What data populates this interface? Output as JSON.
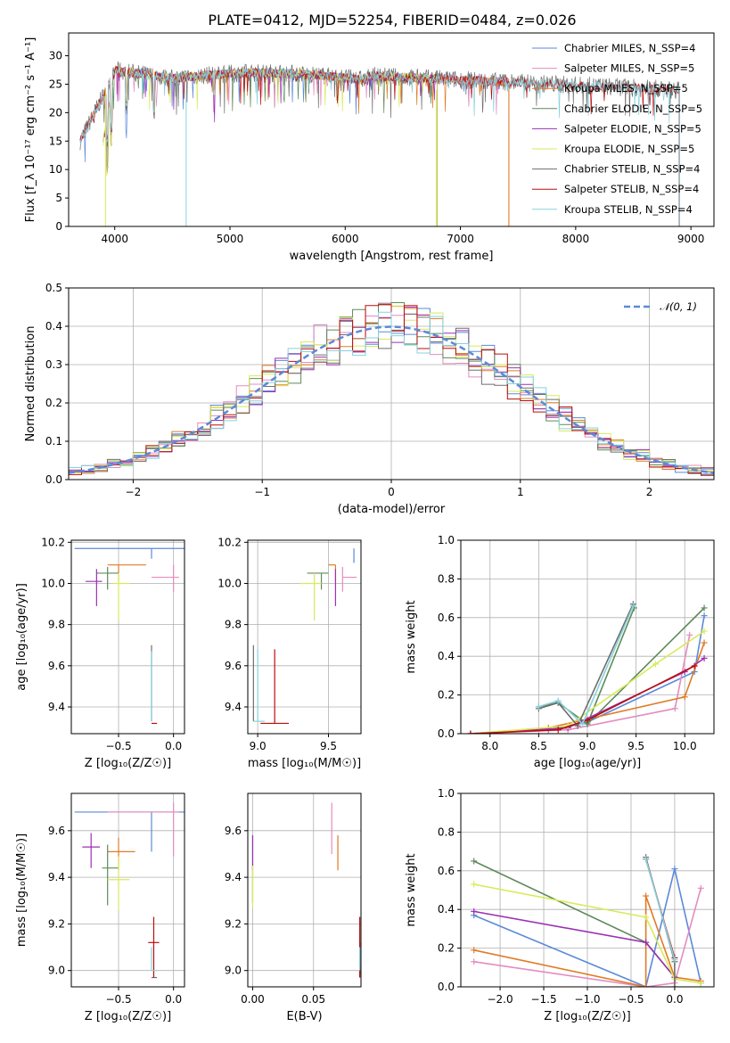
{
  "title": "PLATE=0412, MJD=52254, FIBERID=0484, z=0.026",
  "model_colors": [
    "#5b8ad8",
    "#e48cc0",
    "#e07b26",
    "#5f8a5a",
    "#9b30b4",
    "#d8ea5a",
    "#6e6e6e",
    "#bb0d0d",
    "#86d2de"
  ],
  "chart_data": [
    {
      "type": "line",
      "xlabel": "wavelength [Angstrom, rest frame]",
      "ylabel": "Flux [f_λ 10⁻¹⁷ erg cm⁻² s⁻¹ A⁻¹]",
      "xlim": [
        3600,
        9200
      ],
      "ylim": [
        0,
        34
      ],
      "xticks": [
        "4000",
        "5000",
        "6000",
        "7000",
        "8000",
        "9000"
      ],
      "yticks": [
        "0",
        "5",
        "10",
        "15",
        "20",
        "25",
        "30"
      ],
      "grid": false,
      "legend": "top-right",
      "series": [
        {
          "name": "Chabrier MILES, N_SSP=4",
          "x": [
            3700,
            4000,
            7420
          ],
          "y": [
            15,
            27,
            26
          ]
        },
        {
          "name": "Salpeter MILES, N_SSP=5",
          "x": [
            3700,
            4000,
            7420
          ],
          "y": [
            15,
            27,
            26
          ]
        },
        {
          "name": "Kroupa MILES, N_SSP=5",
          "x": [
            3700,
            4000,
            7420
          ],
          "y": [
            15,
            27,
            26
          ]
        },
        {
          "name": "Chabrier ELODIE, N_SSP=5",
          "x": [
            3900,
            4000,
            6800
          ],
          "y": [
            15,
            27,
            26
          ]
        },
        {
          "name": "Salpeter ELODIE, N_SSP=5",
          "x": [
            3900,
            4000,
            6800
          ],
          "y": [
            15,
            27,
            26
          ]
        },
        {
          "name": "Kroupa ELODIE, N_SSP=5",
          "x": [
            3900,
            4000,
            6800
          ],
          "y": [
            15,
            27,
            26
          ]
        },
        {
          "name": "Chabrier STELIB, N_SSP=4",
          "x": [
            3700,
            4000,
            8900
          ],
          "y": [
            15,
            27,
            26
          ]
        },
        {
          "name": "Salpeter STELIB, N_SSP=4",
          "x": [
            3700,
            4000,
            8900
          ],
          "y": [
            15,
            27,
            26
          ]
        },
        {
          "name": "Kroupa STELIB, N_SSP=4",
          "x": [
            3700,
            4000,
            8900
          ],
          "y": [
            15,
            27,
            26
          ]
        }
      ],
      "note_drop_x": [
        3920,
        4620,
        6790,
        7420
      ]
    },
    {
      "type": "line",
      "xlabel": "(data-model)/error",
      "ylabel": "Normed distribution",
      "xlim": [
        -2.5,
        2.5
      ],
      "ylim": [
        0,
        0.5
      ],
      "xticks": [
        "−2",
        "−1",
        "0",
        "1",
        "2"
      ],
      "yticks": [
        "0.0",
        "0.1",
        "0.2",
        "0.3",
        "0.4",
        "0.5"
      ],
      "grid": true,
      "legend": "top-right",
      "legend_label": "𝒩(0, 1)",
      "bin_width": 0.1,
      "x_start": -2.5,
      "normal_curve": {
        "mu": 0,
        "sigma": 1
      }
    },
    {
      "type": "scatter",
      "xlabel": "Z [log₁₀(Z/Z☉)]",
      "ylabel": "age  [log₁₀(age/yr)]",
      "xlim": [
        -0.93,
        0.1
      ],
      "ylim": [
        9.27,
        10.21
      ],
      "xticks": [
        "−0.5",
        "0.0"
      ],
      "yticks": [
        "9.4",
        "9.6",
        "9.8",
        "10.0",
        "10.2"
      ],
      "grid": true,
      "points": [
        {
          "x": -0.2,
          "y": 10.17,
          "x_err": [
            0.7,
            0.3
          ],
          "y_err": [
            0.05,
            0.0
          ]
        },
        {
          "x": 0.0,
          "y": 10.03,
          "x_err": [
            0.2,
            0.05
          ],
          "y_err": [
            0.07,
            0.06
          ]
        },
        {
          "x": -0.5,
          "y": 10.09,
          "x_err": [
            0.1,
            0.25
          ],
          "y_err": [
            0.08,
            0.0
          ]
        },
        {
          "x": -0.6,
          "y": 10.05,
          "x_err": [
            0.1,
            0.1
          ],
          "y_err": [
            0.08,
            0.03
          ]
        },
        {
          "x": -0.7,
          "y": 10.01,
          "x_err": [
            0.1,
            0.05
          ],
          "y_err": [
            0.12,
            0.06
          ]
        },
        {
          "x": -0.5,
          "y": 10.0,
          "x_err": [
            0.05,
            0.1
          ],
          "y_err": [
            0.18,
            0.05
          ]
        },
        {
          "x": -0.2,
          "y": 9.33,
          "x_err": [
            0.0,
            0.0
          ],
          "y_err": [
            0.0,
            0.37
          ]
        },
        {
          "x": -0.2,
          "y": 9.32,
          "x_err": [
            0.0,
            0.05
          ],
          "y_err": [
            0.0,
            0.0
          ]
        },
        {
          "x": -0.2,
          "y": 9.33,
          "x_err": [
            0.0,
            0.0
          ],
          "y_err": [
            0.0,
            0.34
          ]
        }
      ]
    },
    {
      "type": "scatter",
      "xlabel": "mass [log₁₀(M/M☉)]",
      "ylabel": "",
      "xlim": [
        8.93,
        9.73
      ],
      "ylim": [
        9.27,
        10.21
      ],
      "xticks": [
        "9.0",
        "9.5"
      ],
      "yticks": [
        "9.4",
        "9.6",
        "9.8",
        "10.0",
        "10.2"
      ],
      "grid": true,
      "points": [
        {
          "x": 9.68,
          "y": 10.17,
          "x_err": [
            0.0,
            0.0
          ],
          "y_err": [
            0.07,
            0.0
          ]
        },
        {
          "x": 9.6,
          "y": 10.03,
          "x_err": [
            0.0,
            0.1
          ],
          "y_err": [
            0.07,
            0.05
          ]
        },
        {
          "x": 9.55,
          "y": 10.09,
          "x_err": [
            0.05,
            0.0
          ],
          "y_err": [
            0.08,
            0.0
          ]
        },
        {
          "x": 9.45,
          "y": 10.05,
          "x_err": [
            0.1,
            0.05
          ],
          "y_err": [
            0.08,
            0.0
          ]
        },
        {
          "x": 9.55,
          "y": 10.01,
          "x_err": [
            0.0,
            0.0
          ],
          "y_err": [
            0.12,
            0.06
          ]
        },
        {
          "x": 9.4,
          "y": 10.0,
          "x_err": [
            0.1,
            0.05
          ],
          "y_err": [
            0.18,
            0.05
          ]
        },
        {
          "x": 8.97,
          "y": 9.33,
          "x_err": [
            0.0,
            0.0
          ],
          "y_err": [
            0.0,
            0.37
          ]
        },
        {
          "x": 9.12,
          "y": 9.32,
          "x_err": [
            0.1,
            0.1
          ],
          "y_err": [
            0.0,
            0.36
          ]
        },
        {
          "x": 9.0,
          "y": 9.33,
          "x_err": [
            0.03,
            0.05
          ],
          "y_err": [
            0.0,
            0.35
          ]
        }
      ]
    },
    {
      "type": "line",
      "xlabel": "age  [log₁₀(age/yr)]",
      "ylabel": "mass weight",
      "xlim": [
        7.7,
        10.3
      ],
      "ylim": [
        0,
        1.0
      ],
      "xticks": [
        "8.0",
        "8.5",
        "9.0",
        "9.5",
        "10.0"
      ],
      "yticks": [
        "0.0",
        "0.2",
        "0.4",
        "0.6",
        "0.8",
        "1.0"
      ],
      "grid": true,
      "series": [
        {
          "x": [
            8.6,
            9.0,
            10.1,
            10.2
          ],
          "y": [
            0.02,
            0.06,
            0.32,
            0.61
          ]
        },
        {
          "x": [
            7.8,
            8.8,
            9.9,
            10.05
          ],
          "y": [
            0.0,
            0.02,
            0.13,
            0.51
          ]
        },
        {
          "x": [
            7.8,
            8.6,
            10.0,
            10.2
          ],
          "y": [
            0.0,
            0.03,
            0.19,
            0.47
          ]
        },
        {
          "x": [
            8.5,
            8.7,
            9.0,
            9.48,
            9.0,
            10.2
          ],
          "y": [
            0.14,
            0.16,
            0.05,
            0.65,
            0.05,
            0.65
          ]
        },
        {
          "x": [
            7.8,
            8.8,
            10.0,
            10.2
          ],
          "y": [
            0.0,
            0.03,
            0.32,
            0.39
          ]
        },
        {
          "x": [
            7.8,
            8.8,
            9.7,
            10.2
          ],
          "y": [
            0.0,
            0.04,
            0.36,
            0.53
          ]
        },
        {
          "x": [
            8.5,
            8.7,
            8.9,
            9.47
          ],
          "y": [
            0.13,
            0.16,
            0.04,
            0.67
          ]
        },
        {
          "x": [
            7.8,
            8.7,
            9.0,
            10.1
          ],
          "y": [
            0.0,
            0.02,
            0.07,
            0.35
          ]
        },
        {
          "x": [
            8.5,
            8.7,
            8.95,
            9.47
          ],
          "y": [
            0.14,
            0.17,
            0.05,
            0.66
          ]
        }
      ]
    },
    {
      "type": "scatter",
      "xlabel": "Z [log₁₀(Z/Z☉)]",
      "ylabel": "mass [log₁₀(M/M☉)]",
      "xlim": [
        -0.93,
        0.1
      ],
      "ylim": [
        8.93,
        9.76
      ],
      "xticks": [
        "−0.5",
        "0.0"
      ],
      "yticks": [
        "9.0",
        "9.2",
        "9.4",
        "9.6"
      ],
      "grid": true,
      "points": [
        {
          "x": -0.2,
          "y": 9.68,
          "x_err": [
            0.7,
            0.3
          ],
          "y_err": [
            0.17,
            0.0
          ]
        },
        {
          "x": 0.0,
          "y": 9.68,
          "x_err": [
            0.6,
            0.05
          ],
          "y_err": [
            0.19,
            0.04
          ]
        },
        {
          "x": -0.5,
          "y": 9.51,
          "x_err": [
            0.1,
            0.15
          ],
          "y_err": [
            0.08,
            0.06
          ]
        },
        {
          "x": -0.6,
          "y": 9.44,
          "x_err": [
            0.05,
            0.1
          ],
          "y_err": [
            0.16,
            0.1
          ]
        },
        {
          "x": -0.75,
          "y": 9.53,
          "x_err": [
            0.08,
            0.08
          ],
          "y_err": [
            0.09,
            0.06
          ]
        },
        {
          "x": -0.5,
          "y": 9.39,
          "x_err": [
            0.1,
            0.1
          ],
          "y_err": [
            0.13,
            0.1
          ]
        },
        {
          "x": -0.2,
          "y": 8.97,
          "x_err": [
            0.0,
            0.05
          ],
          "y_err": [
            0.0,
            0.0
          ]
        },
        {
          "x": -0.18,
          "y": 9.12,
          "x_err": [
            0.05,
            0.05
          ],
          "y_err": [
            0.15,
            0.11
          ]
        },
        {
          "x": -0.2,
          "y": 9.0,
          "x_err": [
            0.0,
            0.05
          ],
          "y_err": [
            0.0,
            0.1
          ]
        }
      ]
    },
    {
      "type": "scatter",
      "xlabel": "E(B-V)",
      "ylabel": "",
      "xlim": [
        -0.004,
        0.089
      ],
      "ylim": [
        8.93,
        9.76
      ],
      "xticks": [
        "0.00",
        "0.05"
      ],
      "yticks": [
        "9.0",
        "9.2",
        "9.4",
        "9.6"
      ],
      "grid": true,
      "points": [
        {
          "x": 0.088,
          "y": 8.99,
          "x_err": [
            0.0,
            0.0
          ],
          "y_err": [
            0.0,
            0.13
          ]
        },
        {
          "x": 0.065,
          "y": 9.6,
          "x_err": [
            0.0,
            0.0
          ],
          "y_err": [
            0.1,
            0.12
          ]
        },
        {
          "x": 0.07,
          "y": 9.53,
          "x_err": [
            0.0,
            0.0
          ],
          "y_err": [
            0.1,
            0.05
          ]
        },
        {
          "x": 0.0,
          "y": 9.44,
          "x_err": [
            0.0,
            0.0
          ],
          "y_err": [
            0.15,
            0.14
          ]
        },
        {
          "x": 0.0,
          "y": 9.53,
          "x_err": [
            0.0,
            0.0
          ],
          "y_err": [
            0.1,
            0.05
          ]
        },
        {
          "x": 0.0,
          "y": 9.39,
          "x_err": [
            0.0,
            0.0
          ],
          "y_err": [
            0.12,
            0.06
          ]
        },
        {
          "x": 0.088,
          "y": 8.97,
          "x_err": [
            0.0,
            0.0
          ],
          "y_err": [
            0.0,
            0.05
          ]
        },
        {
          "x": 0.088,
          "y": 9.12,
          "x_err": [
            0.0,
            0.0
          ],
          "y_err": [
            0.15,
            0.11
          ]
        },
        {
          "x": 0.088,
          "y": 9.0,
          "x_err": [
            0.0,
            0.0
          ],
          "y_err": [
            0.0,
            0.1
          ]
        }
      ]
    },
    {
      "type": "line",
      "xlabel": "Z [log₁₀(Z/Z☉)]",
      "ylabel": "mass weight",
      "xlim": [
        -2.45,
        0.45
      ],
      "ylim": [
        0,
        1.0
      ],
      "xticks": [
        "−2.0",
        "−1.5",
        "−1.0",
        "−0.5",
        "0.0"
      ],
      "yticks": [
        "0.0",
        "0.2",
        "0.4",
        "0.6",
        "0.8",
        "1.0"
      ],
      "grid": true,
      "series": [
        {
          "x": [
            -2.3,
            -0.33,
            0.0,
            0.3
          ],
          "y": [
            0.37,
            0.0,
            0.61,
            0.02
          ]
        },
        {
          "x": [
            -2.3,
            -0.33,
            0.0,
            0.3
          ],
          "y": [
            0.13,
            0.0,
            0.02,
            0.51
          ]
        },
        {
          "x": [
            -2.3,
            -0.33,
            -0.33,
            0.0,
            0.3
          ],
          "y": [
            0.19,
            0.0,
            0.47,
            0.05,
            0.03
          ]
        },
        {
          "x": [
            -2.3,
            -0.33,
            0.0
          ],
          "y": [
            0.65,
            0.23,
            0.05
          ]
        },
        {
          "x": [
            -2.3,
            -0.33,
            0.0
          ],
          "y": [
            0.39,
            0.23,
            0.05
          ]
        },
        {
          "x": [
            -2.3,
            -0.33,
            0.0,
            0.3
          ],
          "y": [
            0.53,
            0.36,
            0.04,
            0.02
          ]
        },
        {
          "x": [
            -0.33,
            0.0,
            0.0
          ],
          "y": [
            0.67,
            0.13,
            0.0
          ]
        },
        {
          "x": [
            -0.33,
            0.0
          ],
          "y": [
            0.66,
            0.15
          ]
        },
        {
          "x": [
            -0.33,
            0.0
          ],
          "y": [
            0.66,
            0.14
          ]
        }
      ]
    }
  ]
}
